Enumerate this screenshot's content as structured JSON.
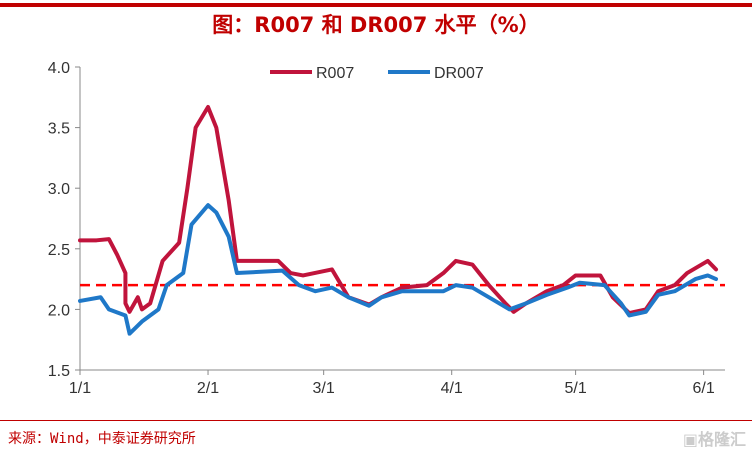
{
  "title": "图：R007 和 DR007 水平（%）",
  "source": "来源：Wind，中泰证券研究所",
  "watermark": "格隆汇",
  "chart_data": {
    "type": "line",
    "title": "图：R007 和 DR007 水平（%）",
    "ylim": [
      1.5,
      4.0
    ],
    "yticks": [
      "1.5",
      "2.0",
      "2.5",
      "3.0",
      "3.5",
      "4.0"
    ],
    "xticks": [
      "1/1",
      "2/1",
      "3/1",
      "4/1",
      "5/1",
      "6/1"
    ],
    "legend_position": "top-right",
    "grid": false,
    "reference_line": {
      "value": 2.2,
      "color": "#ff0000",
      "style": "dashed"
    },
    "series": [
      {
        "name": "R007",
        "color": "#c0143c",
        "points": [
          [
            "1/1",
            2.57
          ],
          [
            "1/5",
            2.57
          ],
          [
            "1/8",
            2.58
          ],
          [
            "1/10",
            2.45
          ],
          [
            "1/12",
            2.3
          ],
          [
            "1/15",
            2.1
          ],
          [
            "1/12",
            2.05
          ],
          [
            "1/13",
            1.98
          ],
          [
            "1/16",
            2.0
          ],
          [
            "1/18",
            2.05
          ],
          [
            "1/21",
            2.4
          ],
          [
            "1/25",
            2.55
          ],
          [
            "1/27",
            3.0
          ],
          [
            "1/29",
            3.5
          ],
          [
            "2/1",
            3.67
          ],
          [
            "2/3",
            3.5
          ],
          [
            "2/6",
            2.9
          ],
          [
            "2/8",
            2.4
          ],
          [
            "2/18",
            2.4
          ],
          [
            "2/21",
            2.3
          ],
          [
            "2/24",
            2.28
          ],
          [
            "3/3",
            2.33
          ],
          [
            "3/7",
            2.1
          ],
          [
            "3/12",
            2.04
          ],
          [
            "3/15",
            2.1
          ],
          [
            "3/20",
            2.18
          ],
          [
            "3/26",
            2.2
          ],
          [
            "3/30",
            2.3
          ],
          [
            "4/2",
            2.4
          ],
          [
            "4/6",
            2.37
          ],
          [
            "4/10",
            2.2
          ],
          [
            "4/14",
            2.05
          ],
          [
            "4/16",
            1.98
          ],
          [
            "4/19",
            2.05
          ],
          [
            "4/24",
            2.15
          ],
          [
            "4/28",
            2.2
          ],
          [
            "5/1",
            2.28
          ],
          [
            "5/7",
            2.28
          ],
          [
            "5/10",
            2.1
          ],
          [
            "5/14",
            1.97
          ],
          [
            "5/18",
            2.0
          ],
          [
            "5/21",
            2.15
          ],
          [
            "5/25",
            2.2
          ],
          [
            "5/28",
            2.3
          ],
          [
            "6/2",
            2.4
          ],
          [
            "6/4",
            2.33
          ]
        ]
      },
      {
        "name": "DR007",
        "color": "#1f78c8",
        "points": [
          [
            "1/1",
            2.07
          ],
          [
            "1/6",
            2.1
          ],
          [
            "1/8",
            2.0
          ],
          [
            "1/12",
            1.95
          ],
          [
            "1/13",
            1.8
          ],
          [
            "1/16",
            1.9
          ],
          [
            "1/20",
            2.0
          ],
          [
            "1/22",
            2.2
          ],
          [
            "1/26",
            2.3
          ],
          [
            "1/28",
            2.7
          ],
          [
            "2/1",
            2.86
          ],
          [
            "2/3",
            2.8
          ],
          [
            "2/6",
            2.6
          ],
          [
            "2/8",
            2.3
          ],
          [
            "2/19",
            2.32
          ],
          [
            "2/23",
            2.2
          ],
          [
            "2/27",
            2.15
          ],
          [
            "3/3",
            2.18
          ],
          [
            "3/7",
            2.1
          ],
          [
            "3/12",
            2.03
          ],
          [
            "3/15",
            2.1
          ],
          [
            "3/20",
            2.15
          ],
          [
            "3/30",
            2.15
          ],
          [
            "4/2",
            2.2
          ],
          [
            "4/6",
            2.18
          ],
          [
            "4/11",
            2.08
          ],
          [
            "4/15",
            2.0
          ],
          [
            "4/19",
            2.05
          ],
          [
            "4/24",
            2.12
          ],
          [
            "4/29",
            2.18
          ],
          [
            "5/2",
            2.22
          ],
          [
            "5/8",
            2.2
          ],
          [
            "5/12",
            2.05
          ],
          [
            "5/14",
            1.95
          ],
          [
            "5/18",
            1.98
          ],
          [
            "5/21",
            2.12
          ],
          [
            "5/25",
            2.15
          ],
          [
            "5/30",
            2.25
          ],
          [
            "6/2",
            2.28
          ],
          [
            "6/4",
            2.25
          ]
        ]
      }
    ]
  }
}
